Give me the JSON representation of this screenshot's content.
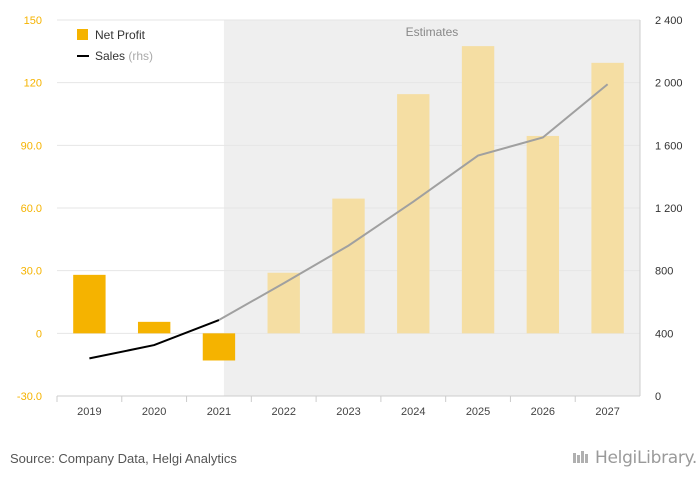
{
  "colors": {
    "net_profit": "#f5b300",
    "net_profit_estimate": "#f5dea3",
    "sales_actual": "#000000",
    "sales_estimate": "#a0a0a0",
    "estimates_band": "#efefef",
    "grid": "#e6e6e6"
  },
  "legend": {
    "net_profit": "Net Profit",
    "sales": "Sales",
    "sales_suffix": "(rhs)"
  },
  "estimates_label": "Estimates",
  "source": "Source: Company Data, Helgi Analytics",
  "brand": "HelgiLibrary.",
  "chart_data": {
    "type": "bar",
    "categories": [
      "2019",
      "2020",
      "2021",
      "2022",
      "2023",
      "2024",
      "2025",
      "2026",
      "2027"
    ],
    "estimate_start": "2022",
    "series": [
      {
        "name": "Net Profit",
        "type": "bar",
        "axis": "left",
        "values": [
          28.0,
          5.5,
          -13.0,
          29.0,
          64.5,
          114.5,
          137.5,
          94.5,
          129.5
        ]
      },
      {
        "name": "Sales",
        "type": "line",
        "axis": "right",
        "values": [
          240,
          325,
          485,
          720,
          960,
          1240,
          1535,
          1650,
          1990
        ]
      }
    ],
    "y_left": {
      "ticks": [
        "-30.0",
        "0",
        "30.0",
        "60.0",
        "90.0",
        "120",
        "150"
      ],
      "ylim": [
        -30,
        150
      ]
    },
    "y_right": {
      "ticks": [
        "0",
        "400",
        "800",
        "1 200",
        "1 600",
        "2 000",
        "2 400"
      ],
      "ylim": [
        0,
        2400
      ]
    },
    "legend_position": "top-left",
    "grid": true
  }
}
